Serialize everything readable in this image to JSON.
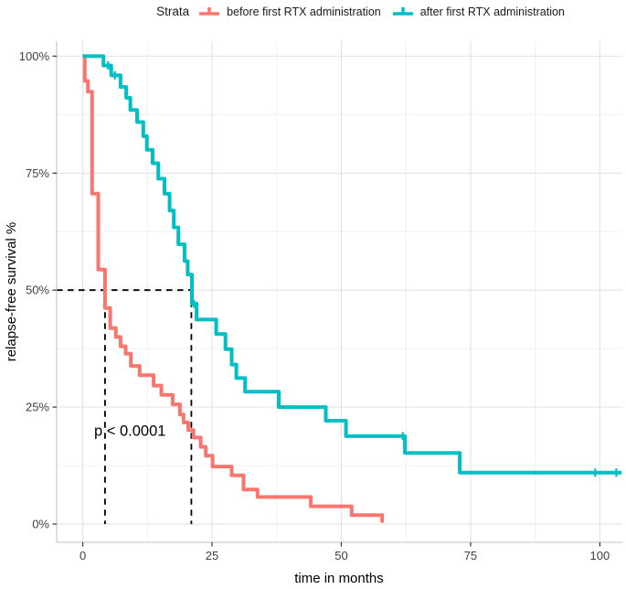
{
  "figure": {
    "legend": {
      "title": "Strata",
      "items": [
        {
          "label": "before first RTX administration",
          "color": "#F8766D"
        },
        {
          "label": "after first RTX administration",
          "color": "#00BFC4"
        }
      ]
    }
  },
  "chart_data": {
    "type": "line",
    "subtype": "kaplan-meier-step-survival",
    "title": "",
    "xlabel": "time in months",
    "ylabel": "relapse-free survival %",
    "legend_title": "Strata",
    "legend_position": "top",
    "grid": "major+minor",
    "xlim": [
      -5.05,
      104.35
    ],
    "ylim": [
      -3.9,
      103.2
    ],
    "x_ticks": [
      0,
      25,
      50,
      75,
      100
    ],
    "y_ticks": [
      0,
      25,
      50,
      75,
      100
    ],
    "y_tick_labels": [
      "0%",
      "25%",
      "50%",
      "75%",
      "100%"
    ],
    "x_tick_labels": [
      "0",
      "25",
      "50",
      "75",
      "100"
    ],
    "annotation": {
      "text": "p < 0.0001",
      "x": 2.2,
      "y": 19.8
    },
    "median_guides": {
      "survival_pct": 50,
      "times": [
        4.3,
        21.0
      ]
    },
    "series": [
      {
        "name": "before first RTX administration",
        "color": "#F8766D",
        "end": 57.9,
        "steps": [
          [
            0,
            100
          ],
          [
            0.4,
            94.7
          ],
          [
            1.0,
            92.4
          ],
          [
            1.8,
            70.6
          ],
          [
            3.0,
            54.4
          ],
          [
            4.3,
            46.2
          ],
          [
            5.3,
            41.9
          ],
          [
            6.4,
            40.0
          ],
          [
            7.3,
            38.0
          ],
          [
            8.3,
            36.4
          ],
          [
            9.3,
            33.8
          ],
          [
            11.0,
            31.8
          ],
          [
            13.7,
            29.6
          ],
          [
            15.2,
            27.6
          ],
          [
            17.4,
            25.6
          ],
          [
            18.8,
            23.4
          ],
          [
            19.5,
            21.7
          ],
          [
            20.4,
            20.1
          ],
          [
            21.4,
            18.5
          ],
          [
            22.8,
            16.5
          ],
          [
            23.8,
            14.6
          ],
          [
            25.1,
            12.3
          ],
          [
            28.8,
            10.4
          ],
          [
            31.1,
            7.4
          ],
          [
            33.8,
            5.8
          ],
          [
            44.1,
            3.8
          ],
          [
            52.0,
            1.9
          ],
          [
            57.9,
            0.3
          ]
        ],
        "censor_marks": []
      },
      {
        "name": "after first RTX administration",
        "color": "#00BFC4",
        "end": 104.2,
        "steps": [
          [
            0,
            100
          ],
          [
            4.0,
            98.0
          ],
          [
            5.5,
            95.9
          ],
          [
            7.3,
            93.4
          ],
          [
            8.4,
            91.1
          ],
          [
            9.2,
            88.5
          ],
          [
            10.5,
            85.9
          ],
          [
            11.7,
            82.9
          ],
          [
            12.4,
            80.0
          ],
          [
            13.5,
            77.1
          ],
          [
            14.6,
            73.8
          ],
          [
            15.8,
            70.6
          ],
          [
            16.8,
            67.0
          ],
          [
            17.6,
            63.4
          ],
          [
            18.5,
            59.8
          ],
          [
            19.7,
            56.2
          ],
          [
            20.3,
            53.3
          ],
          [
            21.1,
            47.1
          ],
          [
            22.0,
            43.7
          ],
          [
            25.8,
            40.6
          ],
          [
            27.6,
            37.4
          ],
          [
            28.8,
            34.1
          ],
          [
            29.7,
            31.2
          ],
          [
            31.4,
            28.3
          ],
          [
            37.9,
            25.0
          ],
          [
            47.0,
            22.1
          ],
          [
            50.9,
            18.8
          ],
          [
            62.3,
            15.2
          ],
          [
            72.9,
            11.0
          ]
        ],
        "censor_marks": [
          [
            4.9,
            98.0
          ],
          [
            6.2,
            95.9
          ],
          [
            21.5,
            47.1
          ],
          [
            61.9,
            18.8
          ],
          [
            99.1,
            11.0
          ],
          [
            103.2,
            11.0
          ]
        ]
      }
    ]
  }
}
